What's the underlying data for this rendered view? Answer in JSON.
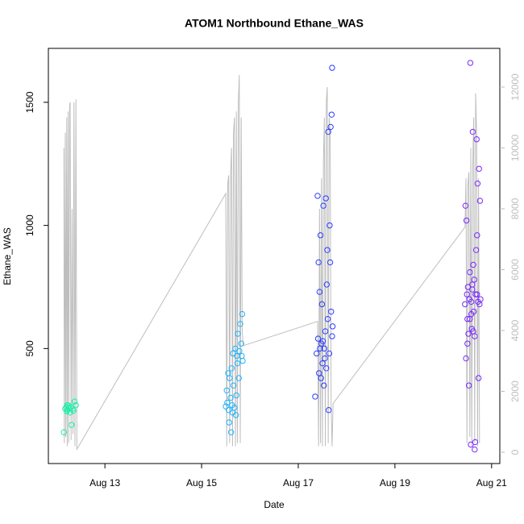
{
  "chart_data": {
    "type": "scatter",
    "title": "ATOM1 Northbound Ethane_WAS",
    "x_label": "Date",
    "y_label": "Ethane_WAS",
    "xlim": [
      11.83,
      21.17
    ],
    "xticks": [
      {
        "value": 13,
        "label": "Aug 13"
      },
      {
        "value": 15,
        "label": "Aug 15"
      },
      {
        "value": 17,
        "label": "Aug 17"
      },
      {
        "value": 19,
        "label": "Aug 19"
      },
      {
        "value": 21,
        "label": "Aug 21"
      }
    ],
    "ylim": [
      33,
      1719
    ],
    "yticks": [
      500,
      1000,
      1500
    ],
    "y2lim": [
      -371,
      13272
    ],
    "y2ticks": [
      0,
      2000,
      4000,
      6000,
      8000,
      10000,
      12000
    ],
    "y2_color": "#bebebe",
    "series": [
      {
        "color": "#19f0a8",
        "x": [
          12.15,
          12.18,
          12.2,
          12.21,
          12.22,
          12.23,
          12.25,
          12.26,
          12.28,
          12.3,
          12.31,
          12.33,
          12.35,
          12.37,
          12.4
        ],
        "values": [
          160,
          255,
          262,
          245,
          270,
          250,
          268,
          258,
          240,
          262,
          190,
          255,
          248,
          285,
          270
        ]
      },
      {
        "color": "#1eb4ff",
        "x": [
          15.5,
          15.52,
          15.53,
          15.55,
          15.56,
          15.57,
          15.58,
          15.6,
          15.61,
          15.62,
          15.63,
          15.64,
          15.65,
          15.66,
          15.68,
          15.7,
          15.71,
          15.72,
          15.73,
          15.74,
          15.75,
          15.77,
          15.78,
          15.8,
          15.82,
          15.83,
          15.84,
          15.85
        ],
        "values": [
          265,
          330,
          280,
          400,
          250,
          200,
          380,
          300,
          160,
          420,
          270,
          240,
          480,
          350,
          260,
          500,
          230,
          310,
          470,
          440,
          560,
          380,
          490,
          600,
          520,
          470,
          640,
          450
        ]
      },
      {
        "color": "#2a3cff",
        "x": [
          17.35,
          17.38,
          17.4,
          17.41,
          17.42,
          17.43,
          17.44,
          17.45,
          17.46,
          17.47,
          17.48,
          17.49,
          17.5,
          17.51,
          17.52,
          17.53,
          17.54,
          17.55,
          17.56,
          17.57,
          17.58,
          17.59,
          17.6,
          17.61,
          17.62,
          17.63,
          17.64,
          17.65,
          17.66,
          17.67,
          17.68,
          17.69,
          17.7,
          17.7,
          17.71
        ],
        "values": [
          305,
          480,
          1120,
          540,
          850,
          400,
          730,
          500,
          960,
          380,
          520,
          680,
          440,
          530,
          1080,
          350,
          500,
          460,
          570,
          1110,
          420,
          760,
          900,
          620,
          1380,
          250,
          480,
          1000,
          850,
          1400,
          650,
          1450,
          1640,
          550,
          590
        ]
      },
      {
        "color": "#7a28ff",
        "x": [
          20.45,
          20.46,
          20.47,
          20.48,
          20.49,
          20.5,
          20.51,
          20.52,
          20.53,
          20.54,
          20.55,
          20.56,
          20.57,
          20.58,
          20.59,
          20.6,
          20.61,
          20.62,
          20.63,
          20.64,
          20.65,
          20.66,
          20.67,
          20.68,
          20.69,
          20.7,
          20.71,
          20.72,
          20.73,
          20.74,
          20.75,
          20.76,
          20.77,
          20.5,
          20.55,
          20.6,
          20.65,
          20.7,
          20.62,
          20.58
        ],
        "values": [
          680,
          1080,
          460,
          1020,
          720,
          620,
          750,
          560,
          350,
          700,
          810,
          1660,
          110,
          690,
          580,
          740,
          1380,
          840,
          650,
          780,
          550,
          120,
          720,
          900,
          1350,
          960,
          1170,
          690,
          380,
          1230,
          680,
          1100,
          700,
          520,
          620,
          760,
          90,
          720,
          570,
          640
        ]
      },
      {
        "color": "#bebebe",
        "axis": "y2",
        "x": [
          12.15,
          12.16,
          12.18,
          12.19,
          12.21,
          12.22,
          12.24,
          12.25,
          12.27,
          12.28,
          12.3,
          12.32,
          12.34,
          12.36,
          12.38,
          12.4,
          12.42,
          15.5,
          15.52,
          15.54,
          15.56,
          15.58,
          15.6,
          15.62,
          15.64,
          15.66,
          15.68,
          15.7,
          15.72,
          15.74,
          15.76,
          15.78,
          15.8,
          15.82,
          15.84,
          15.86,
          17.4,
          17.42,
          17.44,
          17.46,
          17.48,
          17.5,
          17.52,
          17.54,
          17.56,
          17.58,
          17.6,
          17.62,
          17.64,
          17.66,
          17.68,
          17.7,
          17.72,
          20.45,
          20.47,
          20.49,
          20.51,
          20.53,
          20.55,
          20.57,
          20.59,
          20.61,
          20.63,
          20.65,
          20.67,
          20.69,
          20.71,
          20.73,
          20.75
        ],
        "values": [
          10000,
          300,
          10500,
          500,
          11000,
          200,
          11200,
          300,
          11400,
          11500,
          400,
          8000,
          600,
          11500,
          200,
          11600,
          100,
          8500,
          200,
          8800,
          9100,
          300,
          9200,
          10000,
          200,
          10500,
          11000,
          200,
          11200,
          300,
          11500,
          12400,
          300,
          11000,
          4000,
          3500,
          4300,
          200,
          8000,
          300,
          9000,
          200,
          9500,
          11000,
          200,
          11500,
          12000,
          300,
          11000,
          10500,
          1500,
          200,
          1600,
          7400,
          9000,
          300,
          8800,
          9200,
          500,
          10000,
          200,
          9400,
          11000,
          300,
          11800,
          10500,
          200,
          9000,
          300
        ]
      }
    ]
  }
}
